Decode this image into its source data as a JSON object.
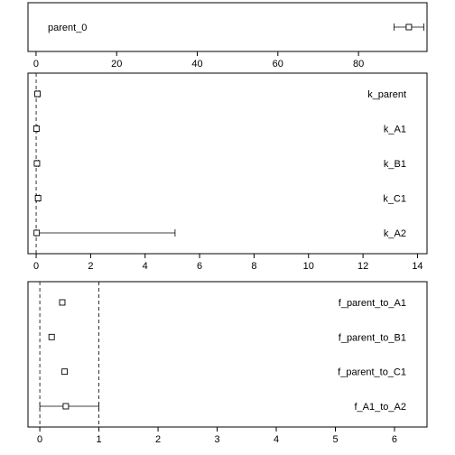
{
  "chart_data": [
    {
      "type": "scatter",
      "panel": "parent_0",
      "xlim": [
        -2,
        97
      ],
      "ticks": [
        0,
        20,
        40,
        60,
        80
      ],
      "reference_lines": [],
      "label_align": "left",
      "params": [
        {
          "name": "parent_0",
          "estimate": 92.5,
          "lower": 88.8,
          "upper": 96.2
        }
      ]
    },
    {
      "type": "scatter",
      "panel": "rates",
      "xlim": [
        -0.3,
        14.35
      ],
      "ticks": [
        0,
        2,
        4,
        6,
        8,
        10,
        12,
        14
      ],
      "reference_lines": [
        0
      ],
      "label_align": "right",
      "params": [
        {
          "name": "k_parent",
          "estimate": 0.05,
          "lower": 0.0,
          "upper": 0.1
        },
        {
          "name": "k_A1",
          "estimate": 0.01,
          "lower": 0.0,
          "upper": 0.05
        },
        {
          "name": "k_B1",
          "estimate": 0.03,
          "lower": 0.0,
          "upper": 0.08
        },
        {
          "name": "k_C1",
          "estimate": 0.07,
          "lower": 0.02,
          "upper": 0.12
        },
        {
          "name": "k_A2",
          "estimate": 0.02,
          "lower": 0.0,
          "upper": 5.1
        }
      ]
    },
    {
      "type": "scatter",
      "panel": "formation_fractions",
      "xlim": [
        -0.2,
        6.55
      ],
      "ticks": [
        0,
        1,
        2,
        3,
        4,
        5,
        6
      ],
      "reference_lines": [
        0,
        1
      ],
      "label_align": "right",
      "params": [
        {
          "name": "f_parent_to_A1",
          "estimate": 0.38,
          "lower": 0.38,
          "upper": 0.38
        },
        {
          "name": "f_parent_to_B1",
          "estimate": 0.2,
          "lower": 0.2,
          "upper": 0.2
        },
        {
          "name": "f_parent_to_C1",
          "estimate": 0.42,
          "lower": 0.42,
          "upper": 0.42
        },
        {
          "name": "f_A1_to_A2",
          "estimate": 0.44,
          "lower": 0.0,
          "upper": 1.0
        }
      ]
    }
  ]
}
